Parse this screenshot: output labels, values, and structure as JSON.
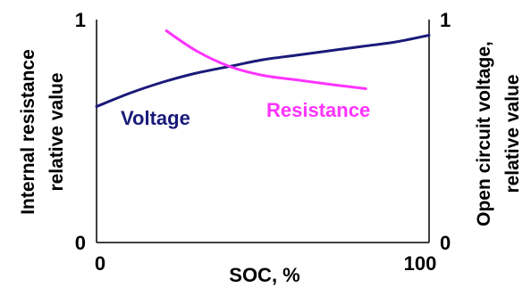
{
  "chart_data": {
    "type": "line",
    "xlabel": "SOC, %",
    "ylabel_left": [
      "Internal resistance",
      "relative value"
    ],
    "ylabel_right": [
      "Open circuit voltage,",
      "relative value"
    ],
    "xlim": [
      0,
      100
    ],
    "ylim_left": [
      0,
      1
    ],
    "ylim_right": [
      0,
      1
    ],
    "x_ticks": [
      "0",
      "100"
    ],
    "y_ticks_left": [
      "0",
      "1"
    ],
    "y_ticks_right": [
      "0",
      "1"
    ],
    "grid": false,
    "series": [
      {
        "name": "Voltage",
        "color": "#1a1a7a",
        "x": [
          0,
          10,
          20,
          30,
          40,
          50,
          60,
          70,
          80,
          90,
          100
        ],
        "y": [
          0.61,
          0.67,
          0.72,
          0.76,
          0.79,
          0.82,
          0.84,
          0.86,
          0.88,
          0.9,
          0.93
        ]
      },
      {
        "name": "Resistance",
        "color": "#ff33ff",
        "x": [
          21,
          30,
          40,
          50,
          60,
          70,
          81
        ],
        "y": [
          0.95,
          0.86,
          0.79,
          0.75,
          0.73,
          0.71,
          0.69
        ]
      }
    ]
  }
}
